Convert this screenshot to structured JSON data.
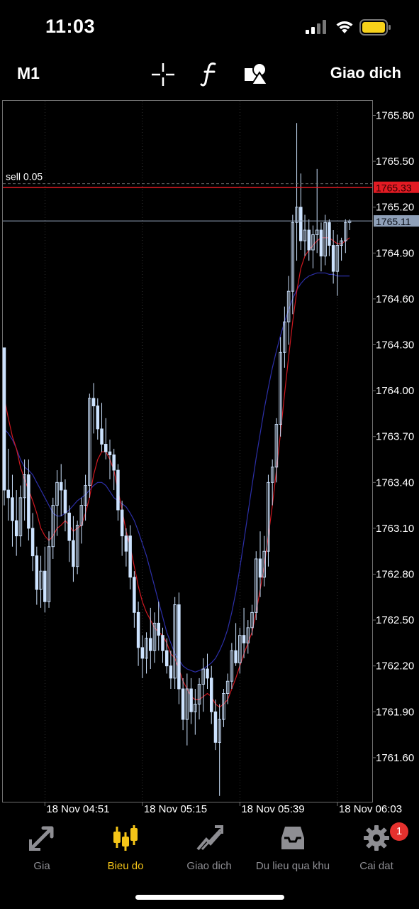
{
  "status": {
    "time": "11:03"
  },
  "toolbar": {
    "period": "M1",
    "trade_label": "Giao dich",
    "icons": [
      "crosshair-icon",
      "function-icon",
      "objects-icon"
    ]
  },
  "chart_data": {
    "type": "candlestick",
    "title": "",
    "ylim": [
      1761.3,
      1765.95
    ],
    "y_ticks": [
      "1765.80",
      "1765.50",
      "1765.20",
      "1764.90",
      "1764.60",
      "1764.30",
      "1764.00",
      "1763.70",
      "1763.40",
      "1763.10",
      "1762.80",
      "1762.50",
      "1762.20",
      "1761.90",
      "1761.60"
    ],
    "y_tick_values": [
      1765.8,
      1765.5,
      1765.2,
      1764.9,
      1764.6,
      1764.3,
      1764.0,
      1763.7,
      1763.4,
      1763.1,
      1762.8,
      1762.5,
      1762.2,
      1761.9,
      1761.6
    ],
    "x_ticks": [
      "18 Nov 04:51",
      "18 Nov 05:15",
      "18 Nov 05:39",
      "18 Nov 06:03"
    ],
    "x_tick_index": [
      10,
      34,
      58,
      82
    ],
    "candles": [
      [
        1764.28,
        1764.28,
        1763.25,
        1763.35
      ],
      [
        1763.35,
        1763.62,
        1763.15,
        1763.3
      ],
      [
        1763.3,
        1763.45,
        1762.98,
        1763.15
      ],
      [
        1763.15,
        1763.35,
        1762.92,
        1763.05
      ],
      [
        1763.05,
        1763.38,
        1762.98,
        1763.3
      ],
      [
        1763.3,
        1763.55,
        1763.15,
        1763.45
      ],
      [
        1763.45,
        1763.55,
        1763.02,
        1763.1
      ],
      [
        1763.1,
        1763.2,
        1762.82,
        1762.92
      ],
      [
        1762.92,
        1762.98,
        1762.6,
        1762.7
      ],
      [
        1762.7,
        1762.92,
        1762.58,
        1762.82
      ],
      [
        1762.82,
        1762.98,
        1762.55,
        1762.62
      ],
      [
        1762.62,
        1763.08,
        1762.58,
        1762.98
      ],
      [
        1762.98,
        1763.3,
        1762.9,
        1763.25
      ],
      [
        1763.25,
        1763.48,
        1763.05,
        1763.4
      ],
      [
        1763.4,
        1763.52,
        1763.18,
        1763.35
      ],
      [
        1763.35,
        1763.42,
        1763.08,
        1763.2
      ],
      [
        1763.2,
        1763.25,
        1762.88,
        1763.02
      ],
      [
        1763.02,
        1763.18,
        1762.75,
        1762.85
      ],
      [
        1762.85,
        1763.15,
        1762.8,
        1763.12
      ],
      [
        1763.12,
        1763.3,
        1763.0,
        1763.25
      ],
      [
        1763.25,
        1763.45,
        1763.15,
        1763.38
      ],
      [
        1763.38,
        1763.98,
        1763.3,
        1763.95
      ],
      [
        1763.95,
        1764.05,
        1763.72,
        1763.9
      ],
      [
        1763.9,
        1763.95,
        1763.68,
        1763.75
      ],
      [
        1763.75,
        1763.92,
        1763.6,
        1763.65
      ],
      [
        1763.65,
        1763.82,
        1763.55,
        1763.6
      ],
      [
        1763.6,
        1763.68,
        1763.42,
        1763.58
      ],
      [
        1763.58,
        1763.62,
        1763.35,
        1763.48
      ],
      [
        1763.48,
        1763.52,
        1763.15,
        1763.22
      ],
      [
        1763.22,
        1763.28,
        1762.92,
        1763.05
      ],
      [
        1763.05,
        1763.1,
        1762.85,
        1762.95
      ],
      [
        1763.05,
        1763.12,
        1762.7,
        1762.78
      ],
      [
        1762.78,
        1762.82,
        1762.45,
        1762.55
      ],
      [
        1762.55,
        1762.62,
        1762.2,
        1762.32
      ],
      [
        1762.32,
        1762.4,
        1762.12,
        1762.25
      ],
      [
        1762.25,
        1762.42,
        1762.15,
        1762.38
      ],
      [
        1762.38,
        1762.58,
        1762.18,
        1762.3
      ],
      [
        1762.3,
        1762.55,
        1762.22,
        1762.48
      ],
      [
        1762.48,
        1762.62,
        1762.3,
        1762.4
      ],
      [
        1762.4,
        1762.45,
        1762.22,
        1762.3
      ],
      [
        1762.3,
        1762.38,
        1762.15,
        1762.2
      ],
      [
        1762.2,
        1762.3,
        1762.05,
        1762.12
      ],
      [
        1762.12,
        1762.65,
        1762.05,
        1762.6
      ],
      [
        1762.6,
        1762.68,
        1761.95,
        1762.05
      ],
      [
        1762.05,
        1762.12,
        1761.78,
        1761.85
      ],
      [
        1761.85,
        1762.15,
        1761.68,
        1762.05
      ],
      [
        1762.05,
        1762.12,
        1761.82,
        1761.9
      ],
      [
        1761.9,
        1762.05,
        1761.75,
        1761.95
      ],
      [
        1761.95,
        1762.12,
        1761.85,
        1762.08
      ],
      [
        1762.08,
        1762.25,
        1761.9,
        1762.18
      ],
      [
        1762.18,
        1762.28,
        1762.05,
        1762.12
      ],
      [
        1762.12,
        1762.2,
        1761.82,
        1761.9
      ],
      [
        1761.9,
        1761.98,
        1761.65,
        1761.7
      ],
      [
        1761.7,
        1761.95,
        1761.35,
        1761.85
      ],
      [
        1761.85,
        1762.05,
        1761.8,
        1762.02
      ],
      [
        1762.02,
        1762.15,
        1761.95,
        1762.1
      ],
      [
        1762.1,
        1762.35,
        1762.05,
        1762.3
      ],
      [
        1762.3,
        1762.48,
        1762.2,
        1762.22
      ],
      [
        1762.22,
        1762.45,
        1762.15,
        1762.4
      ],
      [
        1762.4,
        1762.58,
        1762.25,
        1762.35
      ],
      [
        1762.35,
        1762.5,
        1762.28,
        1762.45
      ],
      [
        1762.45,
        1762.6,
        1762.4,
        1762.55
      ],
      [
        1762.55,
        1762.95,
        1762.5,
        1762.9
      ],
      [
        1762.9,
        1763.08,
        1762.65,
        1762.78
      ],
      [
        1762.78,
        1763.05,
        1762.72,
        1762.95
      ],
      [
        1762.95,
        1763.45,
        1762.85,
        1763.4
      ],
      [
        1763.4,
        1763.55,
        1763.25,
        1763.5
      ],
      [
        1763.5,
        1763.82,
        1763.4,
        1763.78
      ],
      [
        1763.78,
        1764.35,
        1763.7,
        1764.25
      ],
      [
        1764.25,
        1764.55,
        1764.15,
        1764.45
      ],
      [
        1764.45,
        1764.75,
        1764.3,
        1764.65
      ],
      [
        1764.65,
        1765.15,
        1764.5,
        1765.1
      ],
      [
        1765.1,
        1765.75,
        1764.85,
        1765.2
      ],
      [
        1765.2,
        1765.42,
        1764.92,
        1764.98
      ],
      [
        1764.98,
        1765.15,
        1764.88,
        1765.05
      ],
      [
        1765.05,
        1765.12,
        1764.85,
        1764.92
      ],
      [
        1764.92,
        1765.08,
        1764.8,
        1765.02
      ],
      [
        1765.02,
        1765.45,
        1764.9,
        1765.05
      ],
      [
        1765.05,
        1765.1,
        1764.78,
        1764.88
      ],
      [
        1764.88,
        1765.15,
        1764.82,
        1765.1
      ],
      [
        1765.1,
        1765.12,
        1764.88,
        1764.95
      ],
      [
        1764.95,
        1765.05,
        1764.7,
        1764.78
      ],
      [
        1764.78,
        1765.02,
        1764.62,
        1764.95
      ],
      [
        1764.95,
        1765.0,
        1764.85,
        1764.98
      ],
      [
        1764.98,
        1765.12,
        1764.9,
        1765.1
      ],
      [
        1765.1,
        1765.12,
        1765.05,
        1765.11
      ]
    ],
    "ma_fast": [
      1763.95,
      1763.82,
      1763.7,
      1763.62,
      1763.5,
      1763.42,
      1763.35,
      1763.28,
      1763.2,
      1763.1,
      1763.05,
      1763.02,
      1763.05,
      1763.1,
      1763.12,
      1763.15,
      1763.12,
      1763.08,
      1763.1,
      1763.12,
      1763.2,
      1763.3,
      1763.45,
      1763.55,
      1763.6,
      1763.6,
      1763.55,
      1763.48,
      1763.35,
      1763.22,
      1763.08,
      1762.98,
      1762.85,
      1762.72,
      1762.62,
      1762.55,
      1762.5,
      1762.45,
      1762.42,
      1762.4,
      1762.35,
      1762.28,
      1762.25,
      1762.18,
      1762.1,
      1762.05,
      1762.0,
      1761.98,
      1761.98,
      1762.0,
      1762.02,
      1762.0,
      1761.95,
      1761.93,
      1761.95,
      1761.98,
      1762.05,
      1762.12,
      1762.2,
      1762.28,
      1762.35,
      1762.42,
      1762.55,
      1762.7,
      1762.85,
      1763.05,
      1763.25,
      1763.48,
      1763.72,
      1763.98,
      1764.22,
      1764.45,
      1764.65,
      1764.8,
      1764.88,
      1764.92,
      1764.95,
      1764.98,
      1765.0,
      1765.0,
      1765.0,
      1764.98,
      1764.96,
      1764.96,
      1764.98,
      1765.0
    ],
    "ma_slow": [
      1763.75,
      1763.72,
      1763.68,
      1763.62,
      1763.55,
      1763.5,
      1763.48,
      1763.45,
      1763.4,
      1763.35,
      1763.3,
      1763.25,
      1763.2,
      1763.18,
      1763.18,
      1763.2,
      1763.22,
      1763.25,
      1763.28,
      1763.3,
      1763.32,
      1763.35,
      1763.38,
      1763.4,
      1763.4,
      1763.38,
      1763.34,
      1763.3,
      1763.28,
      1763.26,
      1763.24,
      1763.2,
      1763.15,
      1763.08,
      1763.0,
      1762.92,
      1762.82,
      1762.72,
      1762.62,
      1762.52,
      1762.42,
      1762.35,
      1762.28,
      1762.24,
      1762.2,
      1762.18,
      1762.17,
      1762.16,
      1762.17,
      1762.18,
      1762.2,
      1762.22,
      1762.25,
      1762.3,
      1762.36,
      1762.44,
      1762.55,
      1762.68,
      1762.84,
      1763.02,
      1763.2,
      1763.38,
      1763.56,
      1763.72,
      1763.88,
      1764.02,
      1764.15,
      1764.26,
      1764.36,
      1764.45,
      1764.53,
      1764.6,
      1764.66,
      1764.7,
      1764.73,
      1764.75,
      1764.76,
      1764.77,
      1764.77,
      1764.77,
      1764.76,
      1764.76,
      1764.75,
      1764.75,
      1764.75,
      1764.75
    ],
    "order_line": {
      "label": "sell 0.05",
      "price": 1765.33,
      "price_label": "1765.33",
      "color": "#e31b23"
    },
    "bid_line": {
      "price": 1765.11,
      "price_label": "1765.11",
      "color": "#8fa0b8"
    },
    "colors": {
      "candle": "#cde3ff",
      "ma_fast": "#d01820",
      "ma_slow": "#2c2fa8",
      "grid": "#555",
      "frame": "#6f6f6f"
    }
  },
  "tabs": [
    {
      "label": "Gia",
      "icon": "quotes-icon",
      "active": false
    },
    {
      "label": "Bieu do",
      "icon": "chart-icon",
      "active": true
    },
    {
      "label": "Giao dich",
      "icon": "trade-icon",
      "active": false
    },
    {
      "label": "Du lieu qua khu",
      "icon": "history-icon",
      "active": false
    },
    {
      "label": "Cai dat",
      "icon": "settings-icon",
      "active": false,
      "badge": "1"
    }
  ]
}
